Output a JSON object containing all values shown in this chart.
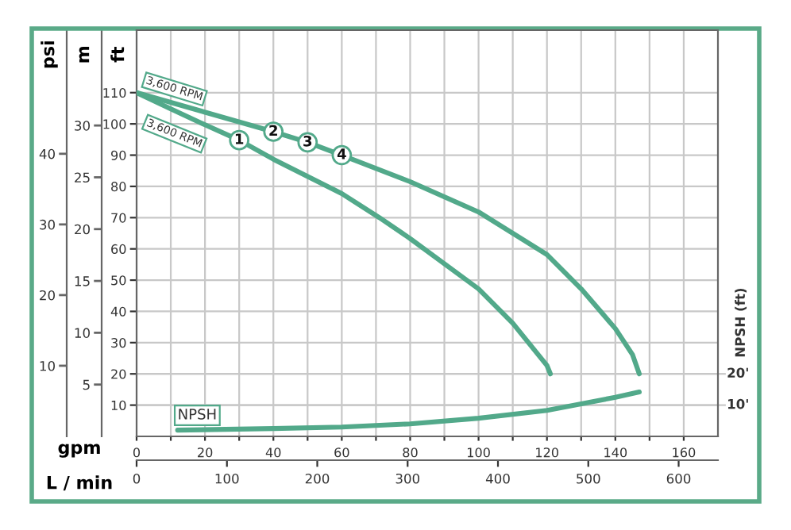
{
  "chart_data": {
    "type": "line",
    "ylabel": "ft",
    "y2label": "m",
    "y3label": "psi",
    "xlabel": "gpm",
    "x2label": "L / min",
    "xlim": [
      0,
      170
    ],
    "xticks": [
      0,
      {
        "value": 10,
        "label": null
      },
      20,
      {
        "value": 30,
        "label": null
      },
      40,
      {
        "value": 50,
        "label": null
      },
      60,
      {
        "value": 70,
        "label": null
      },
      80,
      {
        "value": 90,
        "label": null
      },
      100,
      {
        "value": 110,
        "label": null
      },
      120,
      {
        "value": 130,
        "label": null
      },
      140,
      {
        "value": 150,
        "label": null
      },
      160
    ],
    "x2lim": [
      0,
      643.5
    ],
    "x2ticks": [
      0,
      100,
      200,
      300,
      400,
      500,
      600
    ],
    "ylim": [
      0,
      130
    ],
    "yticks": [
      10,
      20,
      30,
      40,
      50,
      60,
      70,
      80,
      90,
      100,
      110
    ],
    "y2lim": [
      0,
      39.2
    ],
    "y2ticks": [
      5,
      10,
      15,
      20,
      25,
      30
    ],
    "y3lim": [
      0,
      57.5
    ],
    "y3ticks": [
      10,
      20,
      30,
      40
    ],
    "grid": true,
    "marker": "none",
    "line_style": "solid",
    "series": [
      {
        "color": "#52a98a",
        "x": [
          0,
          10,
          20,
          30,
          40,
          60,
          71,
          80,
          100,
          110,
          120,
          121
        ],
        "values": [
          110,
          104.8,
          99.7,
          94.8,
          88.7,
          77.7,
          70,
          63.3,
          47.2,
          36.2,
          22.7,
          20
        ]
      },
      {
        "color": "#52a98a",
        "x": [
          0,
          40,
          50,
          60,
          80,
          100,
          120,
          130,
          140,
          145,
          147
        ],
        "values": [
          110,
          97.5,
          94.1,
          90,
          81.5,
          71.8,
          58.2,
          47.2,
          34.5,
          26.2,
          20
        ]
      },
      {
        "name": "NPSH",
        "color": "#52a98a",
        "x": [
          12,
          40,
          60,
          80,
          100,
          120,
          140,
          147
        ],
        "values": [
          2,
          2.5,
          3,
          4,
          5.8,
          8.3,
          12.5,
          14.2
        ]
      }
    ],
    "ref_lines": [
      {
        "axis": "y",
        "value": 10,
        "label": "10'",
        "color": "#c8c8c8"
      },
      {
        "axis": "y",
        "value": 20,
        "label": "20'",
        "color": "#c8c8c8"
      }
    ],
    "annotations": [
      "3,600 RPM",
      "3,600 RPM",
      {
        "text": "1",
        "x": 30,
        "y": 94.8
      },
      {
        "text": "2",
        "x": 40,
        "y": 97.5
      },
      {
        "text": "3",
        "x": 50,
        "y": 94.1
      },
      {
        "text": "4",
        "x": 60,
        "y": 90
      },
      "NPSH (ft)"
    ]
  }
}
